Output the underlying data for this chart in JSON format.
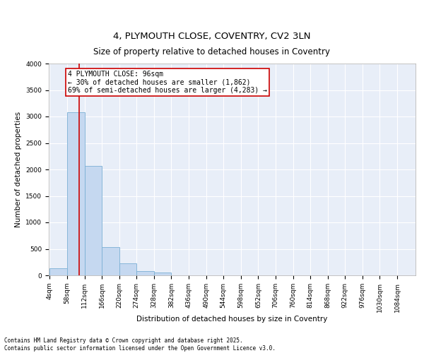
{
  "title1": "4, PLYMOUTH CLOSE, COVENTRY, CV2 3LN",
  "title2": "Size of property relative to detached houses in Coventry",
  "xlabel": "Distribution of detached houses by size in Coventry",
  "ylabel": "Number of detached properties",
  "bins": [
    4,
    58,
    112,
    166,
    220,
    274,
    328,
    382,
    436,
    490,
    544,
    598,
    652,
    706,
    760,
    814,
    868,
    922,
    976,
    1030,
    1084
  ],
  "counts": [
    130,
    3080,
    2070,
    530,
    230,
    80,
    50,
    0,
    0,
    0,
    0,
    0,
    0,
    0,
    0,
    0,
    0,
    0,
    0,
    0
  ],
  "bar_color": "#c5d8f0",
  "bar_edge_color": "#7aafd4",
  "vline_x": 96,
  "vline_color": "#cc0000",
  "annotation_line1": "4 PLYMOUTH CLOSE: 96sqm",
  "annotation_line2": "← 30% of detached houses are smaller (1,862)",
  "annotation_line3": "69% of semi-detached houses are larger (4,283) →",
  "annotation_box_color": "#cc0000",
  "ylim": [
    0,
    4000
  ],
  "yticks": [
    0,
    500,
    1000,
    1500,
    2000,
    2500,
    3000,
    3500,
    4000
  ],
  "background_color": "#e8eef8",
  "grid_color": "#ffffff",
  "footer_line1": "Contains HM Land Registry data © Crown copyright and database right 2025.",
  "footer_line2": "Contains public sector information licensed under the Open Government Licence v3.0.",
  "title1_fontsize": 9.5,
  "title2_fontsize": 8.5,
  "label_fontsize": 7.5,
  "tick_fontsize": 6.5,
  "annotation_fontsize": 7.0,
  "footer_fontsize": 5.5
}
